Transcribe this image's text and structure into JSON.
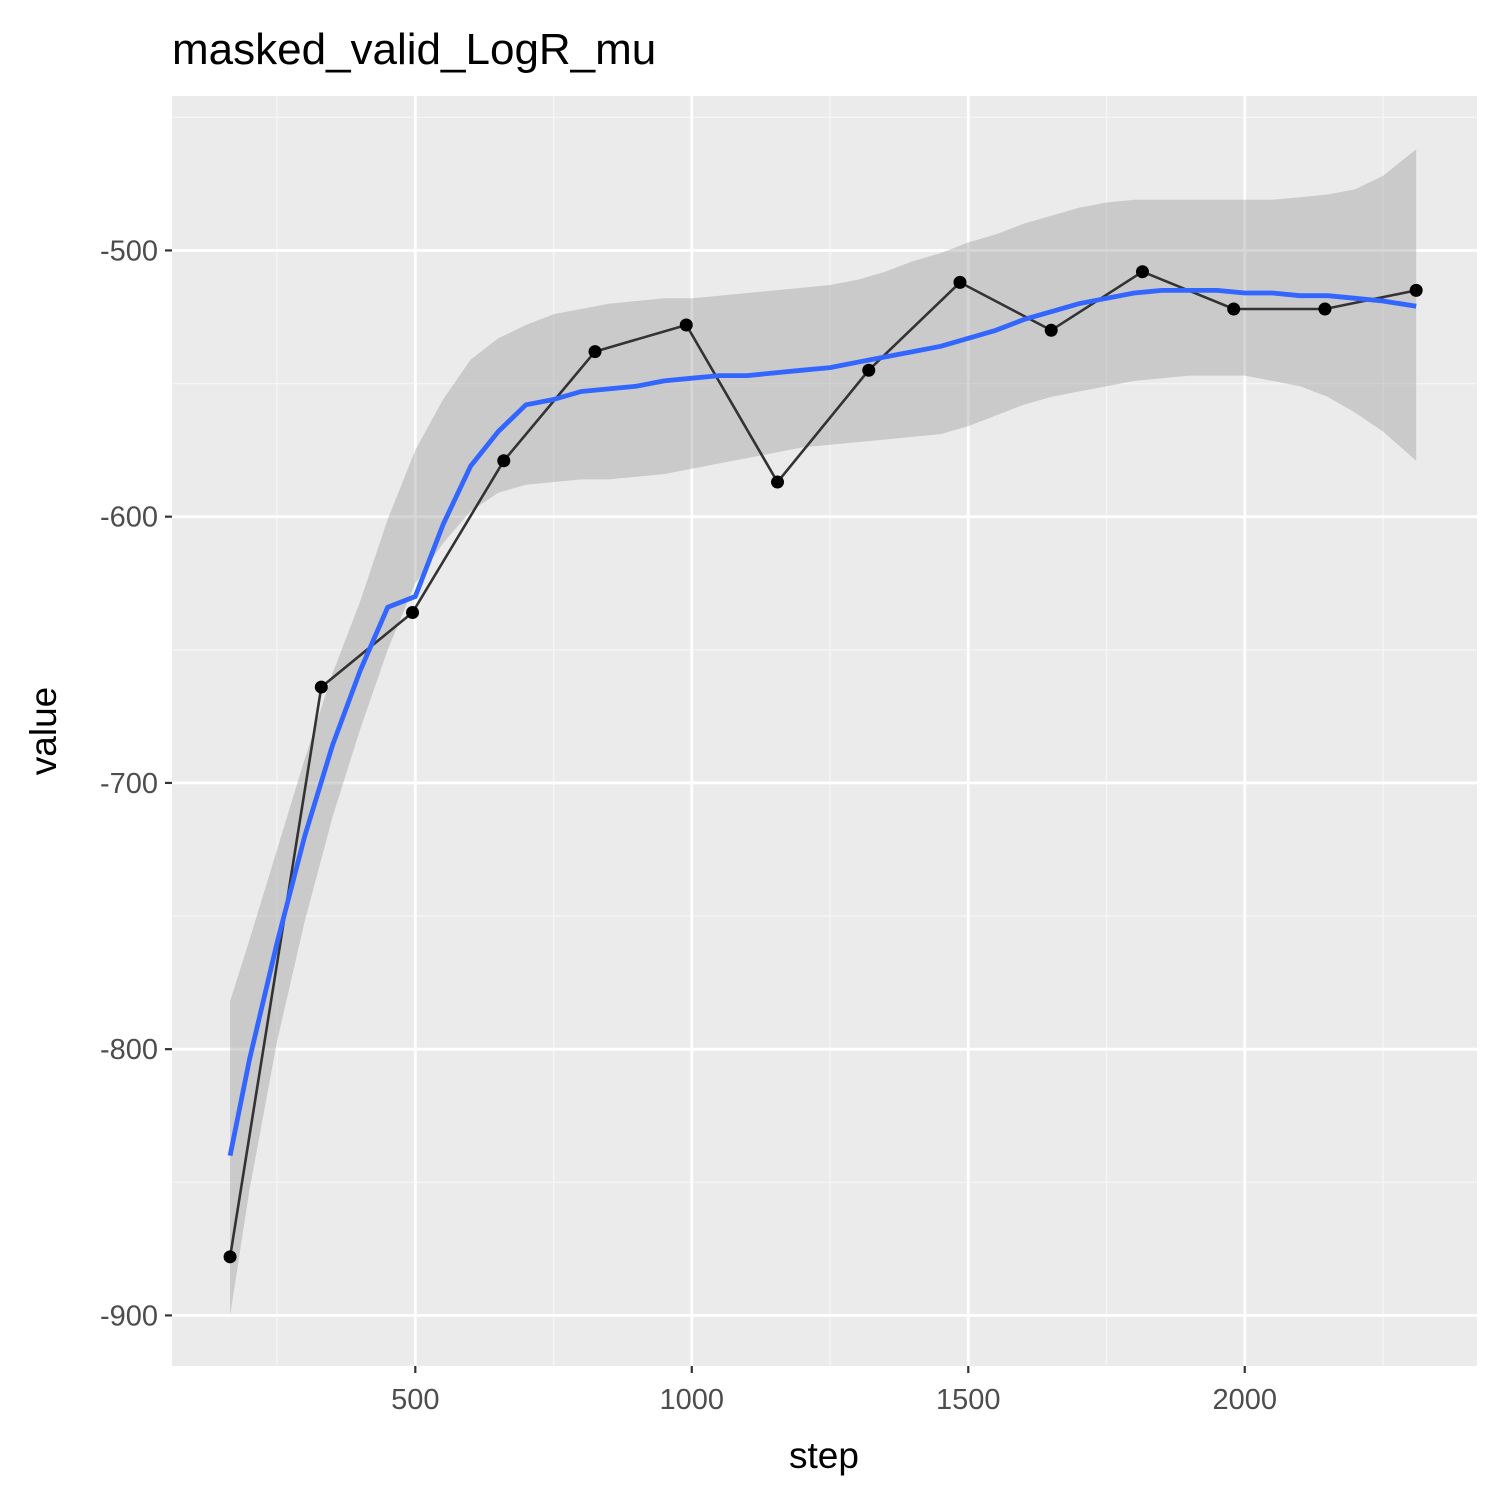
{
  "chart_data": {
    "type": "line",
    "title": "masked_valid_LogR_mu",
    "xlabel": "step",
    "ylabel": "value",
    "xlim": [
      60,
      2420
    ],
    "ylim": [
      -919,
      -442
    ],
    "x_ticks": [
      {
        "value": 500,
        "label": "500"
      },
      {
        "value": 1000,
        "label": "1000"
      },
      {
        "value": 1500,
        "label": "1500"
      },
      {
        "value": 2000,
        "label": "2000"
      }
    ],
    "y_ticks": [
      {
        "value": -500,
        "label": "-500"
      },
      {
        "value": -600,
        "label": "-600"
      },
      {
        "value": -700,
        "label": "-700"
      },
      {
        "value": -800,
        "label": "-800"
      },
      {
        "value": -900,
        "label": "-900"
      }
    ],
    "x_minor": [
      250,
      750,
      1250,
      1750,
      2250
    ],
    "y_minor": [
      -450,
      -550,
      -650,
      -750,
      -850
    ],
    "grid": true,
    "series": [
      {
        "kind": "line-points",
        "x": [
          165,
          330,
          495,
          660,
          825,
          990,
          1155,
          1320,
          1485,
          1650,
          1815,
          1980,
          2145,
          2310
        ],
        "y": [
          -878,
          -664,
          -636,
          -579,
          -538,
          -528,
          -587,
          -545,
          -512,
          -530,
          -508,
          -522,
          -522,
          -515
        ]
      },
      {
        "kind": "smooth",
        "x": [
          165,
          200,
          250,
          300,
          350,
          400,
          450,
          500,
          550,
          600,
          650,
          700,
          750,
          800,
          850,
          900,
          950,
          1000,
          1050,
          1100,
          1150,
          1200,
          1250,
          1300,
          1350,
          1400,
          1450,
          1500,
          1550,
          1600,
          1650,
          1700,
          1750,
          1800,
          1850,
          1900,
          1950,
          2000,
          2050,
          2100,
          2150,
          2200,
          2250,
          2310
        ],
        "y": [
          -840,
          -804,
          -760,
          -720,
          -686,
          -658,
          -634,
          -630,
          -603,
          -581,
          -568,
          -558,
          -556,
          -553,
          -552,
          -551,
          -549,
          -548,
          -547,
          -547,
          -546,
          -545,
          -544,
          -542,
          -540,
          -538,
          -536,
          -533,
          -530,
          -526,
          -523,
          -520,
          -518,
          -516,
          -515,
          -515,
          -515,
          -516,
          -516,
          -517,
          -517,
          -518,
          -519,
          -521
        ],
        "ci_lower": [
          -900,
          -853,
          -797,
          -752,
          -713,
          -680,
          -650,
          -625,
          -610,
          -598,
          -591,
          -588,
          -587,
          -586,
          -586,
          -585,
          -584,
          -582,
          -580,
          -578,
          -576,
          -574,
          -573,
          -572,
          -571,
          -570,
          -569,
          -566,
          -562,
          -558,
          -555,
          -553,
          -551,
          -549,
          -548,
          -547,
          -547,
          -547,
          -549,
          -551,
          -555,
          -561,
          -568,
          -579
        ],
        "ci_upper": [
          -782,
          -759,
          -725,
          -691,
          -659,
          -632,
          -601,
          -575,
          -556,
          -541,
          -533,
          -528,
          -524,
          -522,
          -520,
          -519,
          -518,
          -518,
          -517,
          -516,
          -515,
          -514,
          -513,
          -511,
          -508,
          -504,
          -501,
          -497,
          -494,
          -490,
          -487,
          -484,
          -482,
          -481,
          -481,
          -481,
          -481,
          -481,
          -481,
          -480,
          -479,
          -477,
          -472,
          -462
        ]
      }
    ],
    "colors": {
      "panel_bg": "#ebebeb",
      "grid_major": "#ffffff",
      "grid_minor": "#f5f5f5",
      "line": "#333333",
      "point": "#000000",
      "smooth": "#3366ff",
      "ci_band": "#999999"
    }
  }
}
